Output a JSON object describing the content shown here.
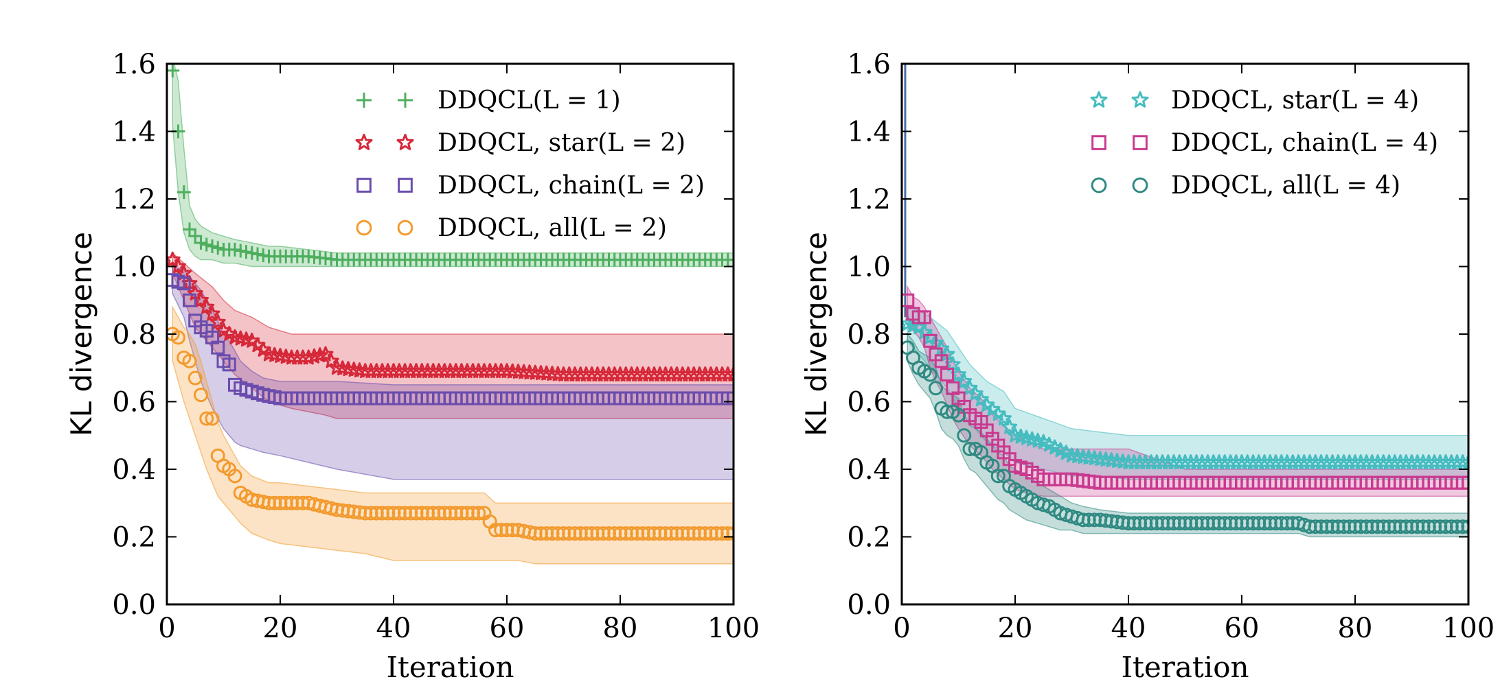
{
  "chart_data": [
    {
      "type": "line",
      "xlabel": "Iteration",
      "ylabel": "KL divergence",
      "xlim": [
        0,
        100
      ],
      "ylim": [
        0.0,
        1.6
      ],
      "xticks": [
        "0",
        "20",
        "40",
        "60",
        "80",
        "100"
      ],
      "yticks": [
        "0.0",
        "0.2",
        "0.4",
        "0.6",
        "0.8",
        "1.0",
        "1.2",
        "1.4",
        "1.6"
      ],
      "grid": false,
      "legend_position": "top-right",
      "series": [
        {
          "name": "DDQCL(L = 1)",
          "marker": "plus",
          "color": "#4daf5e",
          "x": [
            1,
            2,
            3,
            4,
            5,
            6,
            8,
            10,
            12,
            15,
            18,
            20,
            25,
            30,
            40,
            50,
            60,
            70,
            80,
            90,
            100
          ],
          "y": [
            1.58,
            1.4,
            1.22,
            1.11,
            1.09,
            1.07,
            1.06,
            1.05,
            1.05,
            1.04,
            1.03,
            1.03,
            1.03,
            1.02,
            1.02,
            1.02,
            1.02,
            1.02,
            1.02,
            1.02,
            1.02
          ],
          "lower": [
            1.42,
            1.22,
            1.1,
            1.05,
            1.03,
            1.02,
            1.02,
            1.01,
            1.01,
            1.0,
            1.0,
            1.0,
            1.0,
            1.0,
            1.0,
            1.0,
            1.0,
            1.0,
            1.0,
            1.0,
            1.0
          ],
          "upper": [
            1.62,
            1.55,
            1.35,
            1.18,
            1.14,
            1.12,
            1.1,
            1.09,
            1.08,
            1.07,
            1.06,
            1.06,
            1.05,
            1.04,
            1.04,
            1.04,
            1.04,
            1.04,
            1.04,
            1.04,
            1.04
          ]
        },
        {
          "name": "DDQCL, star(L = 2)",
          "marker": "star",
          "color": "#d62839",
          "x": [
            1,
            3,
            5,
            8,
            10,
            12,
            15,
            18,
            22,
            25,
            28,
            30,
            35,
            40,
            50,
            60,
            70,
            80,
            90,
            100
          ],
          "y": [
            1.02,
            0.98,
            0.92,
            0.86,
            0.81,
            0.79,
            0.78,
            0.74,
            0.73,
            0.73,
            0.74,
            0.7,
            0.69,
            0.69,
            0.69,
            0.69,
            0.68,
            0.68,
            0.68,
            0.68
          ],
          "lower": [
            0.98,
            0.9,
            0.82,
            0.76,
            0.72,
            0.68,
            0.64,
            0.6,
            0.58,
            0.57,
            0.56,
            0.55,
            0.55,
            0.55,
            0.55,
            0.55,
            0.55,
            0.55,
            0.55,
            0.55
          ],
          "upper": [
            1.04,
            1.01,
            0.98,
            0.94,
            0.9,
            0.87,
            0.85,
            0.82,
            0.8,
            0.8,
            0.8,
            0.8,
            0.8,
            0.8,
            0.8,
            0.8,
            0.8,
            0.8,
            0.8,
            0.8
          ]
        },
        {
          "name": "DDQCL, chain(L = 2)",
          "marker": "square",
          "color": "#6a4cad",
          "x": [
            1,
            3,
            4,
            5,
            6,
            7,
            8,
            9,
            10,
            11,
            12,
            13,
            15,
            17,
            20,
            25,
            30,
            40,
            50,
            60,
            70,
            80,
            90,
            100
          ],
          "y": [
            0.96,
            0.95,
            0.9,
            0.84,
            0.82,
            0.81,
            0.79,
            0.76,
            0.72,
            0.71,
            0.65,
            0.64,
            0.63,
            0.62,
            0.61,
            0.61,
            0.61,
            0.61,
            0.61,
            0.61,
            0.61,
            0.61,
            0.61,
            0.61
          ],
          "lower": [
            0.92,
            0.85,
            0.78,
            0.72,
            0.66,
            0.62,
            0.58,
            0.55,
            0.52,
            0.5,
            0.48,
            0.47,
            0.46,
            0.45,
            0.44,
            0.42,
            0.4,
            0.37,
            0.37,
            0.37,
            0.37,
            0.37,
            0.37,
            0.37
          ],
          "upper": [
            1.0,
            0.99,
            0.97,
            0.95,
            0.93,
            0.9,
            0.87,
            0.84,
            0.8,
            0.78,
            0.75,
            0.72,
            0.69,
            0.67,
            0.66,
            0.66,
            0.66,
            0.65,
            0.65,
            0.65,
            0.65,
            0.65,
            0.65,
            0.65
          ]
        },
        {
          "name": "DDQCL, all(L = 2)",
          "marker": "circle",
          "color": "#f39a2e",
          "x": [
            1,
            2,
            3,
            4,
            5,
            6,
            7,
            8,
            9,
            10,
            11,
            12,
            13,
            15,
            18,
            20,
            25,
            30,
            35,
            40,
            50,
            56,
            58,
            62,
            65,
            70,
            80,
            90,
            100
          ],
          "y": [
            0.8,
            0.79,
            0.73,
            0.72,
            0.67,
            0.62,
            0.55,
            0.55,
            0.44,
            0.41,
            0.4,
            0.38,
            0.33,
            0.31,
            0.3,
            0.3,
            0.3,
            0.28,
            0.27,
            0.27,
            0.27,
            0.27,
            0.22,
            0.22,
            0.21,
            0.21,
            0.21,
            0.21,
            0.21
          ],
          "lower": [
            0.72,
            0.66,
            0.6,
            0.55,
            0.5,
            0.45,
            0.4,
            0.36,
            0.32,
            0.3,
            0.28,
            0.26,
            0.24,
            0.21,
            0.19,
            0.18,
            0.17,
            0.16,
            0.15,
            0.13,
            0.13,
            0.13,
            0.13,
            0.13,
            0.12,
            0.12,
            0.12,
            0.12,
            0.12
          ],
          "upper": [
            0.88,
            0.85,
            0.82,
            0.8,
            0.77,
            0.72,
            0.66,
            0.6,
            0.54,
            0.5,
            0.47,
            0.44,
            0.41,
            0.38,
            0.36,
            0.36,
            0.35,
            0.34,
            0.33,
            0.33,
            0.33,
            0.33,
            0.3,
            0.3,
            0.3,
            0.3,
            0.3,
            0.3,
            0.3
          ]
        }
      ]
    },
    {
      "type": "line",
      "xlabel": "Iteration",
      "ylabel": "KL divergence",
      "xlim": [
        0,
        100
      ],
      "ylim": [
        0.0,
        1.6
      ],
      "xticks": [
        "0",
        "20",
        "40",
        "60",
        "80",
        "100"
      ],
      "yticks": [
        "0.0",
        "0.2",
        "0.4",
        "0.6",
        "0.8",
        "1.0",
        "1.2",
        "1.4",
        "1.6"
      ],
      "grid": false,
      "legend_position": "top-right",
      "series": [
        {
          "name": "DDQCL, star(L = 4)",
          "marker": "star",
          "color": "#45bcc0",
          "x": [
            1,
            3,
            5,
            8,
            10,
            12,
            15,
            18,
            20,
            25,
            30,
            35,
            40,
            50,
            60,
            70,
            80,
            90,
            100
          ],
          "y": [
            0.83,
            0.82,
            0.79,
            0.74,
            0.68,
            0.64,
            0.59,
            0.55,
            0.5,
            0.48,
            0.44,
            0.43,
            0.42,
            0.42,
            0.42,
            0.42,
            0.42,
            0.42,
            0.42
          ],
          "lower": [
            0.78,
            0.74,
            0.7,
            0.64,
            0.58,
            0.54,
            0.48,
            0.45,
            0.42,
            0.4,
            0.38,
            0.38,
            0.37,
            0.37,
            0.37,
            0.37,
            0.37,
            0.37,
            0.37
          ],
          "upper": [
            0.88,
            0.87,
            0.85,
            0.81,
            0.76,
            0.71,
            0.66,
            0.63,
            0.58,
            0.55,
            0.52,
            0.51,
            0.5,
            0.5,
            0.5,
            0.5,
            0.5,
            0.5,
            0.5
          ]
        },
        {
          "name": "DDQCL, chain(L = 4)",
          "marker": "square",
          "color": "#c93a8f",
          "x": [
            1,
            2,
            3,
            4,
            5,
            6,
            7,
            8,
            9,
            10,
            12,
            14,
            16,
            18,
            20,
            22,
            25,
            30,
            35,
            40,
            50,
            60,
            70,
            80,
            90,
            100
          ],
          "y": [
            0.9,
            0.86,
            0.85,
            0.85,
            0.78,
            0.74,
            0.72,
            0.68,
            0.64,
            0.61,
            0.56,
            0.54,
            0.49,
            0.45,
            0.41,
            0.4,
            0.37,
            0.37,
            0.36,
            0.36,
            0.36,
            0.36,
            0.36,
            0.36,
            0.36,
            0.36
          ],
          "lower": [
            0.86,
            0.81,
            0.79,
            0.76,
            0.7,
            0.66,
            0.63,
            0.59,
            0.55,
            0.52,
            0.47,
            0.44,
            0.4,
            0.37,
            0.34,
            0.33,
            0.32,
            0.32,
            0.32,
            0.32,
            0.32,
            0.32,
            0.32,
            0.32,
            0.32,
            0.32
          ],
          "upper": [
            0.94,
            0.91,
            0.9,
            0.88,
            0.85,
            0.82,
            0.79,
            0.76,
            0.72,
            0.69,
            0.64,
            0.61,
            0.56,
            0.53,
            0.5,
            0.48,
            0.46,
            0.46,
            0.46,
            0.46,
            0.4,
            0.4,
            0.4,
            0.4,
            0.4,
            0.4
          ]
        },
        {
          "name": "DDQCL, all(L = 4)",
          "marker": "circle",
          "color": "#2f8a82",
          "x": [
            1,
            2,
            3,
            4,
            5,
            6,
            7,
            8,
            9,
            10,
            11,
            12,
            13,
            14,
            15,
            16,
            17,
            18,
            19,
            20,
            22,
            24,
            26,
            28,
            30,
            32,
            35,
            40,
            50,
            60,
            70,
            72,
            80,
            90,
            100
          ],
          "y": [
            0.76,
            0.73,
            0.7,
            0.69,
            0.68,
            0.64,
            0.58,
            0.57,
            0.57,
            0.56,
            0.5,
            0.46,
            0.46,
            0.45,
            0.42,
            0.41,
            0.38,
            0.38,
            0.35,
            0.34,
            0.32,
            0.3,
            0.29,
            0.27,
            0.26,
            0.25,
            0.25,
            0.24,
            0.24,
            0.24,
            0.24,
            0.23,
            0.23,
            0.23,
            0.23
          ],
          "lower": [
            0.72,
            0.68,
            0.65,
            0.63,
            0.61,
            0.57,
            0.52,
            0.5,
            0.49,
            0.47,
            0.43,
            0.4,
            0.39,
            0.37,
            0.35,
            0.33,
            0.31,
            0.3,
            0.28,
            0.27,
            0.25,
            0.24,
            0.23,
            0.22,
            0.22,
            0.21,
            0.21,
            0.21,
            0.21,
            0.21,
            0.21,
            0.2,
            0.2,
            0.2,
            0.2
          ],
          "upper": [
            0.8,
            0.78,
            0.75,
            0.74,
            0.73,
            0.7,
            0.65,
            0.63,
            0.62,
            0.61,
            0.56,
            0.53,
            0.52,
            0.51,
            0.49,
            0.47,
            0.45,
            0.44,
            0.41,
            0.4,
            0.38,
            0.36,
            0.34,
            0.32,
            0.3,
            0.29,
            0.28,
            0.27,
            0.27,
            0.27,
            0.27,
            0.27,
            0.27,
            0.27,
            0.27
          ]
        }
      ]
    }
  ]
}
